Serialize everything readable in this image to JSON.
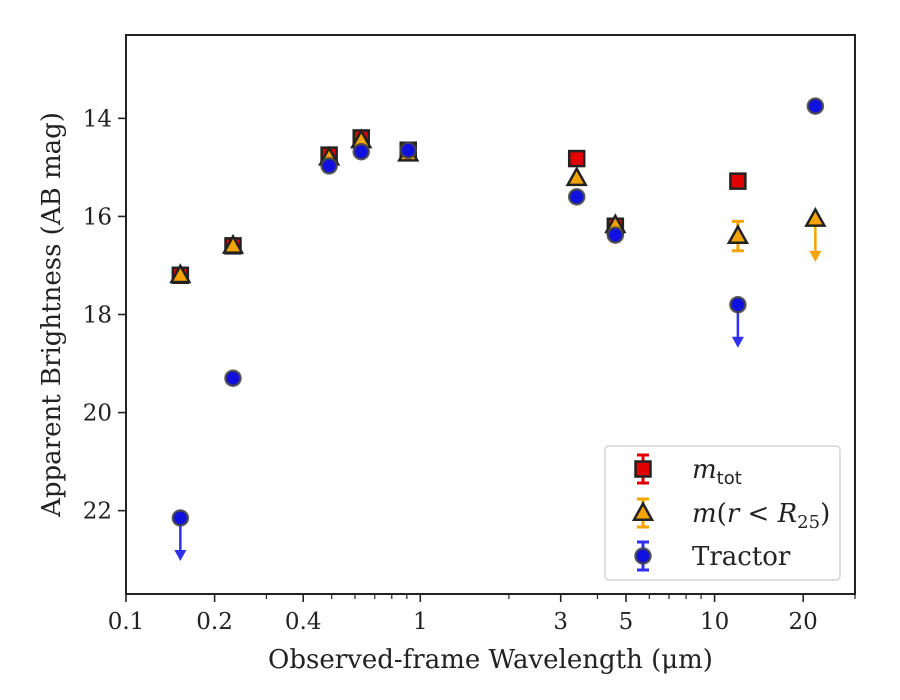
{
  "chart_data": {
    "type": "scatter",
    "xlabel": "Observed-frame Wavelength (μm)",
    "ylabel": "Apparent Brightness (AB mag)",
    "xscale": "log",
    "xlim": [
      0.1,
      30
    ],
    "ylim": [
      23.7,
      12.3
    ],
    "y_inverted": true,
    "xticks": [
      {
        "value": 0.1,
        "label": "0.1"
      },
      {
        "value": 0.2,
        "label": "0.2"
      },
      {
        "value": 0.4,
        "label": "0.4"
      },
      {
        "value": 1,
        "label": "1"
      },
      {
        "value": 3,
        "label": "3"
      },
      {
        "value": 5,
        "label": "5"
      },
      {
        "value": 10,
        "label": "10"
      },
      {
        "value": 20,
        "label": "20"
      }
    ],
    "yticks": [
      {
        "value": 14,
        "label": "14"
      },
      {
        "value": 16,
        "label": "16"
      },
      {
        "value": 18,
        "label": "18"
      },
      {
        "value": 20,
        "label": "20"
      },
      {
        "value": 22,
        "label": "22"
      }
    ],
    "grid": false,
    "legend_position": "bottom-right",
    "series": [
      {
        "key": "mtot",
        "name": "m_tot",
        "marker": "square",
        "color": "#e00000",
        "errcolor": "#e00000",
        "points": [
          {
            "x": 0.153,
            "y": 17.2
          },
          {
            "x": 0.231,
            "y": 16.6
          },
          {
            "x": 0.49,
            "y": 14.75
          },
          {
            "x": 0.63,
            "y": 14.4
          },
          {
            "x": 0.91,
            "y": 14.65
          },
          {
            "x": 3.4,
            "y": 14.82
          },
          {
            "x": 4.6,
            "y": 16.2
          },
          {
            "x": 12.0,
            "y": 15.28
          }
        ]
      },
      {
        "key": "mr25",
        "name": "m(r < R_25)",
        "marker": "triangle",
        "color": "#f5a300",
        "errcolor": "#f5a300",
        "points": [
          {
            "x": 0.153,
            "y": 17.2
          },
          {
            "x": 0.231,
            "y": 16.6
          },
          {
            "x": 0.49,
            "y": 14.8
          },
          {
            "x": 0.63,
            "y": 14.45
          },
          {
            "x": 0.91,
            "y": 14.72
          },
          {
            "x": 3.4,
            "y": 15.22
          },
          {
            "x": 4.6,
            "y": 16.18
          },
          {
            "x": 12.0,
            "y": 16.4,
            "err": 0.3
          },
          {
            "x": 22.0,
            "y": 16.05,
            "upper_limit": true
          }
        ]
      },
      {
        "key": "tractor",
        "name": "Tractor",
        "marker": "circle",
        "color": "#1010e0",
        "errcolor": "#3030f0",
        "points": [
          {
            "x": 0.153,
            "y": 22.15,
            "upper_limit": true
          },
          {
            "x": 0.231,
            "y": 19.3
          },
          {
            "x": 0.49,
            "y": 14.97
          },
          {
            "x": 0.63,
            "y": 14.68
          },
          {
            "x": 0.91,
            "y": 14.65
          },
          {
            "x": 3.4,
            "y": 15.6
          },
          {
            "x": 4.6,
            "y": 16.38
          },
          {
            "x": 12.0,
            "y": 17.8,
            "upper_limit": true
          },
          {
            "x": 22.0,
            "y": 13.75
          }
        ]
      }
    ]
  }
}
